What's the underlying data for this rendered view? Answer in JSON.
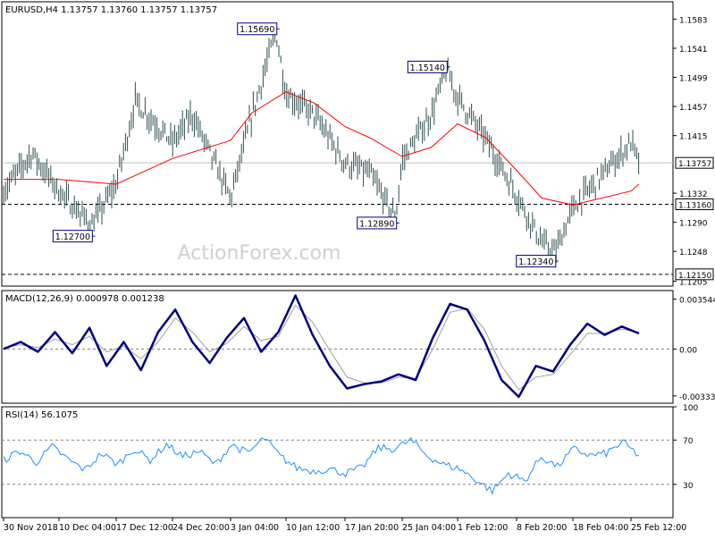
{
  "colors": {
    "background": "#ffffff",
    "frame": "#000000",
    "price_bars": "#2f4f4f",
    "moving_average": "#ff0000",
    "macd_line": "#000080",
    "macd_signal": "#a0a0a0",
    "rsi_line": "#1e90ff",
    "level_lines": "#000000",
    "current_price_line": "#c0c0c0",
    "watermark": "#d3d3d3"
  },
  "chart_data": [
    {
      "type": "line",
      "panel": "price",
      "title": "EURUSD,H4  1.13757 1.13760 1.13757 1.13757",
      "watermark": "ActionForex.com",
      "instrument": "EURUSD",
      "timeframe": "H4",
      "ohlc_header": {
        "open": 1.13757,
        "high": 1.1376,
        "low": 1.13757,
        "close": 1.13757
      },
      "ylim": [
        1.1198,
        1.1608
      ],
      "y_ticks": [
        1.1583,
        1.1541,
        1.1499,
        1.1457,
        1.1415,
        1.1332,
        1.129,
        1.1248,
        1.1205
      ],
      "x_ticks": [
        "30 Nov 2018",
        "10 Dec 04:00",
        "17 Dec 12:00",
        "24 Dec 20:00",
        "3 Jan 04:00",
        "10 Jan 12:00",
        "17 Jan 20:00",
        "25 Jan 04:00",
        "1 Feb 12:00",
        "8 Feb 20:00",
        "18 Feb 04:00",
        "25 Feb 12:00"
      ],
      "current_price": 1.13757,
      "horizontal_levels": [
        1.1316,
        1.1215
      ],
      "annotations": [
        {
          "label": "1.15690",
          "value": 1.1569,
          "x": "9 Jan 04:00"
        },
        {
          "label": "1.15140",
          "value": 1.1514,
          "x": "31 Jan 00:00"
        },
        {
          "label": "1.12700",
          "value": 1.127,
          "x": "14 Dec 08:00"
        },
        {
          "label": "1.12890",
          "value": 1.1289,
          "x": "24 Jan 08:00"
        },
        {
          "label": "1.12340",
          "value": 1.1234,
          "x": "15 Feb 04:00"
        }
      ],
      "close_series": {
        "x": [
          "30 Nov 2018",
          "5 Dec 04:00",
          "10 Dec 04:00",
          "14 Dec 08:00",
          "17 Dec 12:00",
          "20 Dec 00:00",
          "24 Dec 20:00",
          "28 Dec 00:00",
          "3 Jan 04:00",
          "6 Jan 00:00",
          "9 Jan 04:00",
          "10 Jan 12:00",
          "14 Jan 00:00",
          "17 Jan 20:00",
          "21 Jan 00:00",
          "24 Jan 08:00",
          "25 Jan 04:00",
          "29 Jan 00:00",
          "31 Jan 00:00",
          "1 Feb 12:00",
          "5 Feb 00:00",
          "8 Feb 20:00",
          "13 Feb 00:00",
          "15 Feb 04:00",
          "18 Feb 04:00",
          "20 Feb 00:00",
          "25 Feb 12:00",
          "26 Feb 12:00"
        ],
        "values": [
          1.1335,
          1.139,
          1.1335,
          1.1285,
          1.1345,
          1.1465,
          1.1405,
          1.1445,
          1.1325,
          1.1445,
          1.1565,
          1.1475,
          1.1445,
          1.1375,
          1.136,
          1.1295,
          1.138,
          1.1445,
          1.151,
          1.147,
          1.141,
          1.133,
          1.126,
          1.1245,
          1.131,
          1.1335,
          1.1405,
          1.1376
        ]
      },
      "moving_average": {
        "x": [
          "30 Nov 2018",
          "10 Dec 04:00",
          "17 Dec 12:00",
          "24 Dec 20:00",
          "3 Jan 04:00",
          "6 Jan 00:00",
          "10 Jan 12:00",
          "14 Jan 00:00",
          "17 Jan 20:00",
          "21 Jan 00:00",
          "25 Jan 04:00",
          "29 Jan 00:00",
          "1 Feb 12:00",
          "5 Feb 00:00",
          "8 Feb 20:00",
          "13 Feb 00:00",
          "18 Feb 04:00",
          "20 Feb 00:00",
          "25 Feb 12:00",
          "26 Feb 12:00"
        ],
        "values": [
          1.1352,
          1.1352,
          1.1345,
          1.1382,
          1.1408,
          1.1448,
          1.1478,
          1.1462,
          1.1428,
          1.1412,
          1.1385,
          1.1398,
          1.1432,
          1.1412,
          1.1365,
          1.1325,
          1.1315,
          1.132,
          1.1335,
          1.1345
        ]
      }
    },
    {
      "type": "line",
      "panel": "macd",
      "title": "MACD(12,26,9) 0.000978 0.001238",
      "ylim": [
        -0.00385,
        0.00415
      ],
      "y_ticks": [
        0.003544,
        0.0,
        -0.003331
      ],
      "y_tick_labels": [
        "0.003544",
        "0.00",
        "-0.003331"
      ],
      "series": [
        {
          "values": [
            0.0,
            0.0005,
            -0.0002,
            0.0012,
            -0.0003,
            0.0015,
            -0.0012,
            0.0005,
            -0.0015,
            0.0012,
            0.0028,
            0.0005,
            -0.001,
            0.0008,
            0.0022,
            -0.0002,
            0.0012,
            0.0038,
            0.001,
            -0.0012,
            -0.0028,
            -0.0025,
            -0.0023,
            -0.0018,
            -0.0022,
            0.0008,
            0.0032,
            0.0028,
            0.0006,
            -0.0022,
            -0.0034,
            -0.0012,
            -0.0016,
            0.0003,
            0.0018,
            0.001,
            0.0016,
            0.0011
          ]
        },
        {
          "values": [
            0.0001,
            0.0003,
            0.0001,
            0.0007,
            0.0003,
            0.0009,
            -0.0002,
            0.0002,
            -0.0007,
            0.0005,
            0.0022,
            0.0012,
            -0.0002,
            0.0004,
            0.0016,
            0.0006,
            0.0009,
            0.0031,
            0.0019,
            -0.0001,
            -0.002,
            -0.0024,
            -0.0024,
            -0.002,
            -0.0021,
            0.0,
            0.0026,
            0.0029,
            0.0014,
            -0.0012,
            -0.0029,
            -0.002,
            -0.0018,
            -0.0004,
            0.0011,
            0.0011,
            0.0014,
            0.0012
          ]
        }
      ]
    },
    {
      "type": "line",
      "panel": "rsi",
      "title": "RSI(14) 56.1075",
      "ylim": [
        0,
        100
      ],
      "y_ticks": [
        100,
        70,
        30,
        0
      ],
      "levels": [
        70,
        30
      ],
      "series": [
        {
          "values": [
            52,
            60,
            50,
            64,
            52,
            43,
            58,
            48,
            62,
            52,
            66,
            55,
            60,
            48,
            66,
            58,
            72,
            55,
            45,
            42,
            44,
            40,
            45,
            63,
            62,
            70,
            56,
            48,
            44,
            34,
            24,
            40,
            33,
            55,
            46,
            62,
            56,
            58,
            68,
            56
          ]
        }
      ]
    }
  ]
}
